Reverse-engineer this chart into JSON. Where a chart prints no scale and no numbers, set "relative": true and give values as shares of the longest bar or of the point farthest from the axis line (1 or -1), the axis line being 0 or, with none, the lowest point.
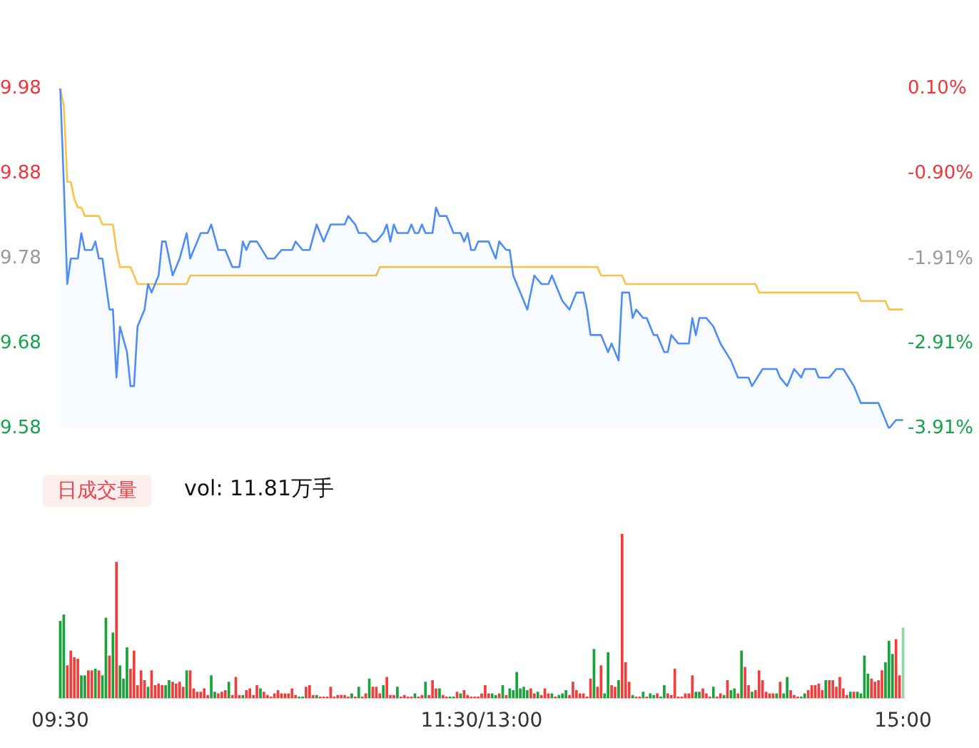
{
  "chart_data": [
    {
      "type": "line",
      "ylim": [
        9.58,
        9.98
      ],
      "yticks": [
        9.58,
        9.68,
        9.78,
        9.88,
        9.98
      ],
      "y2lim": [
        -3.91,
        0.1
      ],
      "y2ticks": [
        {
          "value": -3.91,
          "label": "-3.91%"
        },
        {
          "value": -2.91,
          "label": "-2.91%"
        },
        {
          "value": -1.91,
          "label": "-1.91%"
        },
        {
          "value": -0.9,
          "label": "-0.90%"
        },
        {
          "value": 0.1,
          "label": "0.10%"
        }
      ],
      "tick_labels": "y",
      "marker": "none",
      "categories": [
        null,
        null,
        null,
        null,
        null,
        null,
        null,
        null,
        null,
        null,
        null,
        null,
        null,
        null,
        null,
        null,
        null,
        null,
        null,
        null,
        null,
        null,
        null,
        null,
        null,
        null,
        null,
        null,
        null,
        null,
        null,
        null,
        null,
        null,
        null,
        null,
        null,
        null,
        null,
        null,
        null,
        null,
        null,
        null,
        null,
        null,
        null,
        null,
        null,
        null,
        null,
        null,
        null,
        null,
        null,
        null,
        null,
        null,
        null,
        null,
        null,
        null,
        null,
        null,
        null,
        null,
        null,
        null,
        null,
        null,
        null,
        null,
        null,
        null,
        null,
        null,
        null,
        null,
        null,
        null,
        null,
        null,
        null,
        null,
        null,
        null,
        null,
        null,
        null,
        null,
        null,
        null,
        null,
        null,
        null,
        null,
        null,
        null,
        null,
        null,
        null,
        null,
        null,
        null,
        null,
        null,
        null,
        null,
        null,
        null,
        null,
        null,
        null,
        null,
        null,
        null,
        null,
        null,
        null,
        null,
        null,
        null,
        null,
        null,
        null,
        null,
        null,
        null,
        null,
        null,
        null,
        null,
        null,
        null,
        null,
        null,
        null,
        null,
        null,
        null,
        null,
        null,
        null,
        null,
        null,
        null,
        null,
        null,
        null,
        null,
        null,
        null,
        null,
        null,
        null,
        null,
        null,
        null,
        null,
        null,
        null,
        null,
        null,
        null,
        null,
        null,
        null,
        null,
        null,
        null,
        null,
        null,
        null,
        null,
        null,
        null,
        null,
        null,
        null,
        null,
        null,
        null,
        null,
        null,
        null,
        null,
        null,
        null,
        null,
        null,
        null,
        null,
        null,
        null,
        null,
        null,
        null,
        null,
        null,
        null,
        null,
        null,
        null,
        null,
        null,
        null,
        null,
        null,
        null,
        null,
        null,
        null,
        null,
        null,
        null,
        null,
        null,
        null,
        null,
        null,
        null,
        null,
        null,
        null,
        null,
        null,
        null,
        null,
        null,
        null,
        null,
        null,
        null,
        null,
        null,
        null,
        null,
        null,
        null,
        null,
        null
      ],
      "series": [
        {
          "type": "area",
          "color": "#4e8cf7",
          "values": [
            9.98,
            9.87,
            9.75,
            9.78,
            null,
            9.78,
            9.81,
            9.79,
            null,
            9.79,
            9.8,
            9.78,
            9.78,
            null,
            9.72,
            9.72,
            9.64,
            9.7,
            null,
            9.67,
            9.63,
            9.63,
            9.7,
            null,
            9.72,
            9.75,
            9.74,
            null,
            9.76,
            9.8,
            9.8,
            null,
            9.76,
            null,
            9.78,
            null,
            9.81,
            9.78,
            null,
            null,
            9.81,
            null,
            9.81,
            9.82,
            null,
            9.79,
            null,
            9.79,
            null,
            9.77,
            null,
            9.77,
            9.8,
            9.79,
            9.8,
            null,
            9.8,
            null,
            null,
            9.78,
            null,
            9.78,
            null,
            9.79,
            null,
            null,
            9.79,
            9.8,
            null,
            9.79,
            null,
            9.79,
            null,
            9.82,
            null,
            9.8,
            null,
            9.82,
            null,
            null,
            null,
            9.82,
            9.83,
            null,
            9.82,
            9.81,
            null,
            9.81,
            null,
            9.8,
            9.8,
            null,
            9.81,
            9.82,
            9.8,
            9.82,
            9.81,
            null,
            null,
            9.81,
            9.82,
            9.81,
            9.81,
            9.82,
            9.81,
            null,
            9.81,
            9.84,
            9.83,
            null,
            9.83,
            null,
            9.81,
            null,
            9.81,
            9.8,
            9.81,
            9.79,
            9.79,
            9.8,
            null,
            null,
            9.8,
            null,
            9.78,
            9.8,
            null,
            9.79,
            9.79,
            9.76,
            null,
            9.74,
            null,
            9.72,
            null,
            9.76,
            null,
            9.75,
            null,
            9.75,
            9.76,
            9.75,
            null,
            9.73,
            null,
            9.72,
            null,
            9.74,
            null,
            9.74,
            9.72,
            9.69,
            null,
            null,
            9.69,
            null,
            9.67,
            9.68,
            null,
            9.66,
            9.74,
            null,
            9.74,
            9.71,
            9.72,
            null,
            9.71,
            9.71,
            null,
            9.69,
            9.69,
            null,
            9.67,
            9.67,
            9.69,
            null,
            9.68,
            null,
            null,
            9.68,
            9.71,
            9.69,
            9.71,
            null,
            9.71,
            null,
            9.7,
            null,
            9.68,
            null,
            null,
            9.66,
            null,
            9.64,
            null,
            null,
            9.64,
            9.63,
            null,
            null,
            9.65,
            9.65,
            null,
            9.65,
            9.65,
            9.64,
            null,
            9.63,
            9.64,
            9.65,
            null,
            9.64,
            9.65,
            null,
            null,
            9.65,
            9.64,
            null,
            null,
            9.64,
            null,
            9.65,
            null,
            9.65,
            null,
            null,
            9.63,
            null,
            9.61,
            null,
            null,
            null,
            null,
            9.61,
            null,
            9.59,
            9.58,
            null,
            9.59,
            null,
            9.59
          ]
        },
        {
          "type": "line",
          "color": "#f9c34a",
          "values": [
            9.98,
            9.96,
            9.87,
            9.87,
            9.85,
            9.84,
            9.84,
            9.83,
            9.83,
            9.83,
            9.83,
            9.83,
            9.82,
            9.82,
            9.82,
            9.82,
            9.79,
            9.77,
            9.77,
            9.77,
            9.77,
            9.76,
            9.75,
            9.75,
            9.75,
            9.75,
            9.75,
            9.75,
            9.75,
            9.75,
            9.75,
            9.75,
            9.75,
            9.75,
            9.75,
            9.75,
            9.75,
            9.76,
            9.76,
            9.76,
            9.76,
            9.76,
            9.76,
            9.76,
            9.76,
            9.76,
            9.76,
            9.76,
            9.76,
            9.76,
            9.76,
            9.76,
            9.76,
            9.76,
            9.76,
            9.76,
            9.76,
            9.76,
            9.76,
            9.76,
            9.76,
            9.76,
            9.76,
            9.76,
            9.76,
            9.76,
            9.76,
            9.76,
            9.76,
            9.76,
            9.76,
            9.76,
            9.76,
            9.76,
            9.76,
            9.76,
            9.76,
            9.76,
            9.76,
            9.76,
            9.76,
            9.76,
            9.76,
            9.76,
            9.76,
            9.76,
            9.76,
            9.76,
            9.76,
            9.76,
            9.76,
            9.77,
            9.77,
            9.77,
            9.77,
            9.77,
            9.77,
            9.77,
            9.77,
            9.77,
            9.77,
            9.77,
            9.77,
            9.77,
            9.77,
            9.77,
            9.77,
            9.77,
            9.77,
            9.77,
            9.77,
            9.77,
            9.77,
            9.77,
            9.77,
            9.77,
            9.77,
            9.77,
            9.77,
            9.77,
            9.77,
            9.77,
            9.77,
            9.77,
            9.77,
            9.77,
            9.77,
            9.77,
            9.77,
            9.77,
            9.77,
            9.77,
            9.77,
            9.77,
            9.77,
            9.77,
            9.77,
            9.77,
            9.77,
            9.77,
            9.77,
            9.77,
            9.77,
            9.77,
            9.77,
            9.77,
            9.77,
            9.77,
            9.77,
            9.77,
            9.77,
            9.77,
            9.77,
            9.77,
            9.76,
            9.76,
            9.76,
            9.76,
            9.76,
            9.76,
            9.76,
            9.75,
            9.75,
            9.75,
            9.75,
            9.75,
            9.75,
            9.75,
            9.75,
            9.75,
            9.75,
            9.75,
            9.75,
            9.75,
            9.75,
            9.75,
            9.75,
            9.75,
            9.75,
            9.75,
            9.75,
            9.75,
            9.75,
            9.75,
            9.75,
            9.75,
            9.75,
            9.75,
            9.75,
            9.75,
            9.75,
            9.75,
            9.75,
            9.75,
            9.75,
            9.75,
            9.75,
            9.75,
            9.75,
            9.74,
            9.74,
            9.74,
            9.74,
            9.74,
            9.74,
            9.74,
            9.74,
            9.74,
            9.74,
            9.74,
            9.74,
            9.74,
            9.74,
            9.74,
            9.74,
            9.74,
            9.74,
            9.74,
            9.74,
            9.74,
            9.74,
            9.74,
            9.74,
            9.74,
            9.74,
            9.74,
            9.74,
            9.74,
            9.73,
            9.73,
            9.73,
            9.73,
            9.73,
            9.73,
            9.73,
            9.73,
            9.72,
            9.72,
            9.72,
            9.72,
            9.72
          ]
        }
      ]
    },
    {
      "type": "bar",
      "title": "日成交量",
      "subtitle": "vol: 11.81万手",
      "relative": true,
      "categories": [
        "09:30",
        null,
        null,
        null,
        null,
        null,
        null,
        null,
        null,
        null,
        null,
        null,
        null,
        null,
        null,
        null,
        null,
        null,
        null,
        null,
        null,
        null,
        null,
        null,
        null,
        null,
        null,
        null,
        null,
        null,
        null,
        null,
        null,
        null,
        null,
        null,
        null,
        null,
        null,
        null,
        null,
        null,
        null,
        null,
        null,
        null,
        null,
        null,
        null,
        null,
        null,
        null,
        null,
        null,
        null,
        null,
        null,
        null,
        null,
        null,
        null,
        null,
        null,
        null,
        null,
        null,
        null,
        null,
        null,
        null,
        null,
        null,
        null,
        null,
        null,
        null,
        null,
        null,
        null,
        null,
        null,
        null,
        null,
        null,
        null,
        null,
        null,
        null,
        null,
        null,
        null,
        null,
        null,
        null,
        null,
        null,
        null,
        null,
        null,
        null,
        null,
        null,
        null,
        null,
        null,
        null,
        null,
        null,
        null,
        null,
        null,
        null,
        null,
        null,
        null,
        null,
        null,
        null,
        null,
        null,
        "11:30/13:00",
        null,
        null,
        null,
        null,
        null,
        null,
        null,
        null,
        null,
        null,
        null,
        null,
        null,
        null,
        null,
        null,
        null,
        null,
        null,
        null,
        null,
        null,
        null,
        null,
        null,
        null,
        null,
        null,
        null,
        null,
        null,
        null,
        null,
        null,
        null,
        null,
        null,
        null,
        null,
        null,
        null,
        null,
        null,
        null,
        null,
        null,
        null,
        null,
        null,
        null,
        null,
        null,
        null,
        null,
        null,
        null,
        null,
        null,
        null,
        null,
        null,
        null,
        null,
        null,
        null,
        null,
        null,
        null,
        null,
        null,
        null,
        null,
        null,
        null,
        null,
        null,
        null,
        null,
        null,
        null,
        null,
        null,
        null,
        null,
        null,
        null,
        null,
        null,
        null,
        null,
        null,
        null,
        null,
        null,
        null,
        null,
        null,
        null,
        null,
        null,
        null,
        null,
        null,
        null,
        null,
        null,
        null,
        null,
        null,
        null,
        null,
        null,
        null,
        null,
        null,
        null,
        null,
        null,
        null,
        "15:00"
      ],
      "values": [
        0.47,
        0.51,
        0.2,
        0.29,
        0.25,
        0.24,
        0.14,
        0.14,
        0.17,
        0.17,
        0.18,
        0.17,
        0.14,
        0.49,
        0.26,
        0.4,
        0.83,
        0.2,
        0.12,
        0.31,
        0.18,
        0.29,
        0.08,
        0.17,
        0.11,
        0.07,
        0.17,
        0.08,
        0.09,
        0.08,
        0.08,
        0.11,
        0.1,
        0.09,
        0.1,
        0.07,
        0.17,
        0.17,
        0.06,
        0.04,
        0.04,
        0.06,
        0.02,
        0.14,
        0.04,
        0.03,
        0.04,
        0.05,
        0.1,
        0.02,
        0.13,
        0.02,
        0.02,
        0.05,
        0.06,
        0.02,
        0.08,
        0.06,
        0.04,
        0.02,
        0.01,
        0.03,
        0.05,
        0.03,
        0.03,
        0.03,
        0.06,
        0.02,
        0.01,
        0.01,
        0.07,
        0.08,
        0.02,
        0.02,
        0.01,
        0.01,
        0.01,
        0.07,
        0.01,
        0.02,
        0.02,
        0.02,
        0.01,
        0.03,
        0.01,
        0.07,
        0.01,
        0.03,
        0.12,
        0.07,
        0.07,
        0.03,
        0.08,
        0.13,
        0.02,
        0.02,
        0.07,
        0.01,
        0.02,
        0.01,
        0.01,
        0.03,
        0.01,
        0.02,
        0.1,
        0.02,
        0.11,
        0.06,
        0.06,
        0.02,
        0.01,
        0.01,
        0.01,
        0.04,
        0.03,
        0.05,
        0.02,
        0.01,
        0.01,
        0.01,
        0.03,
        0.08,
        0.03,
        0.03,
        0.02,
        0.03,
        0.08,
        0.02,
        0.06,
        0.05,
        0.16,
        0.06,
        0.07,
        0.05,
        0.06,
        0.03,
        0.04,
        0.02,
        0.06,
        0.03,
        0.03,
        0.01,
        0.02,
        0.03,
        0.05,
        0.02,
        0.1,
        0.05,
        0.03,
        0.03,
        0.01,
        0.12,
        0.3,
        0.07,
        0.2,
        0.03,
        0.28,
        0.08,
        0.07,
        0.11,
        1,
        0.22,
        0.1,
        0.02,
        0.01,
        0.01,
        0.04,
        0.01,
        0.03,
        0.02,
        0.03,
        0.01,
        0.08,
        0.03,
        0.02,
        0.18,
        0.01,
        0.01,
        0.03,
        0.03,
        0.14,
        0.04,
        0.04,
        0.06,
        0.03,
        0.01,
        0.07,
        0.01,
        0.03,
        0.02,
        0.11,
        0.05,
        0.06,
        0.03,
        0.29,
        0.19,
        0.08,
        0.04,
        0.05,
        0.17,
        0.11,
        0.04,
        0.03,
        0.03,
        0.03,
        0.1,
        0.03,
        0.13,
        0.05,
        0.02,
        0.01,
        0.01,
        0.03,
        0.05,
        0.08,
        0.08,
        0.09,
        0.05,
        0.11,
        0.11,
        0.11,
        0.07,
        0.13,
        0.06,
        0.02,
        0.04,
        0.04,
        0.04,
        0.03,
        0.26,
        0.15,
        0.12,
        0.1,
        0.11,
        0.17,
        0.22,
        0.35,
        0.27,
        0.36,
        0.14,
        0.43
      ],
      "colors": [
        "#1aa33a",
        "#1aa33a",
        "#f23d3d",
        "#f23d3d",
        "#f23d3d",
        "#f23d3d",
        "#1aa33a",
        "#1aa33a",
        "#f23d3d",
        "#f23d3d",
        "#1aa33a",
        "#f23d3d",
        "#1aa33a",
        "#1aa33a",
        "#f23d3d",
        "#1aa33a",
        "#f23d3d",
        "#1aa33a",
        "#1aa33a",
        "#1aa33a",
        "#f23d3d",
        "#f23d3d",
        "#f23d3d",
        "#f23d3d",
        "#f23d3d",
        "#1aa33a",
        "#f23d3d",
        "#f23d3d",
        "#f23d3d",
        "#f23d3d",
        "#1aa33a",
        "#1aa33a",
        "#f23d3d",
        "#f23d3d",
        "#f23d3d",
        "#f23d3d",
        "#1aa33a",
        "#f23d3d",
        "#f23d3d",
        "#f23d3d",
        "#f23d3d",
        "#f23d3d",
        "#f23d3d",
        "#1aa33a",
        "#1aa33a",
        "#f23d3d",
        "#f23d3d",
        "#f23d3d",
        "#1aa33a",
        "#f23d3d",
        "#f23d3d",
        "#f23d3d",
        "#1aa33a",
        "#f23d3d",
        "#f23d3d",
        "#f23d3d",
        "#f23d3d",
        "#1aa33a",
        "#f23d3d",
        "#f23d3d",
        "#f23d3d",
        "#f23d3d",
        "#f23d3d",
        "#f23d3d",
        "#f23d3d",
        "#f23d3d",
        "#f23d3d",
        "#f23d3d",
        "#1aa33a",
        "#1aa33a",
        "#f23d3d",
        "#f23d3d",
        "#f23d3d",
        "#1aa33a",
        "#f23d3d",
        "#f23d3d",
        "#f23d3d",
        "#f23d3d",
        "#f23d3d",
        "#f23d3d",
        "#f23d3d",
        "#f23d3d",
        "#f23d3d",
        "#1aa33a",
        "#f23d3d",
        "#1aa33a",
        "#f23d3d",
        "#f23d3d",
        "#1aa33a",
        "#f23d3d",
        "#f23d3d",
        "#f23d3d",
        "#1aa33a",
        "#f23d3d",
        "#f23d3d",
        "#f23d3d",
        "#1aa33a",
        "#f23d3d",
        "#f23d3d",
        "#f23d3d",
        "#f23d3d",
        "#1aa33a",
        "#f23d3d",
        "#f23d3d",
        "#1aa33a",
        "#f23d3d",
        "#f23d3d",
        "#f23d3d",
        "#1aa33a",
        "#f23d3d",
        "#f23d3d",
        "#1aa33a",
        "#1aa33a",
        "#f23d3d",
        "#1aa33a",
        "#f23d3d",
        "#f23d3d",
        "#f23d3d",
        "#f23d3d",
        "#f23d3d",
        "#f23d3d",
        "#f23d3d",
        "#f23d3d",
        "#1aa33a",
        "#1aa33a",
        "#f23d3d",
        "#1aa33a",
        "#f23d3d",
        "#1aa33a",
        "#1aa33a",
        "#1aa33a",
        "#1aa33a",
        "#1aa33a",
        "#1aa33a",
        "#f23d3d",
        "#f23d3d",
        "#1aa33a",
        "#f23d3d",
        "#f23d3d",
        "#f23d3d",
        "#1aa33a",
        "#f23d3d",
        "#1aa33a",
        "#1aa33a",
        "#1aa33a",
        "#f23d3d",
        "#f23d3d",
        "#f23d3d",
        "#f23d3d",
        "#f23d3d",
        "#f23d3d",
        "#f23d3d",
        "#1aa33a",
        "#f23d3d",
        "#f23d3d",
        "#1aa33a",
        "#1aa33a",
        "#f23d3d",
        "#f23d3d",
        "#1aa33a",
        "#f23d3d",
        "#f23d3d",
        "#f23d3d",
        "#1aa33a",
        "#f23d3d",
        "#f23d3d",
        "#1aa33a",
        "#f23d3d",
        "#1aa33a",
        "#1aa33a",
        "#f23d3d",
        "#1aa33a",
        "#1aa33a",
        "#f23d3d",
        "#f23d3d",
        "#f23d3d",
        "#f23d3d",
        "#f23d3d",
        "#f23d3d",
        "#f23d3d",
        "#f23d3d",
        "#1aa33a",
        "#1aa33a",
        "#f23d3d",
        "#f23d3d",
        "#f23d3d",
        "#1aa33a",
        "#f23d3d",
        "#f23d3d",
        "#1aa33a",
        "#f23d3d",
        "#1aa33a",
        "#1aa33a",
        "#f23d3d",
        "#1aa33a",
        "#f23d3d",
        "#f23d3d",
        "#1aa33a",
        "#f23d3d",
        "#f23d3d",
        "#f23d3d",
        "#f23d3d",
        "#f23d3d",
        "#f23d3d",
        "#1aa33a",
        "#f23d3d",
        "#1aa33a",
        "#1aa33a",
        "#f23d3d",
        "#f23d3d",
        "#f23d3d",
        "#1aa33a",
        "#1aa33a",
        "#f23d3d",
        "#f23d3d",
        "#f23d3d",
        "#f23d3d",
        "#f23d3d",
        "#1aa33a",
        "#f23d3d",
        "#f23d3d",
        "#f23d3d",
        "#f23d3d",
        "#f23d3d",
        "#f23d3d",
        "#1aa33a",
        "#f23d3d",
        "#1aa33a",
        "#1aa33a",
        "#1aa33a",
        "#1aa33a",
        "#f23d3d",
        "#f23d3d",
        "#f23d3d",
        "#f23d3d",
        "#1aa33a",
        "#1aa33a",
        "#1aa33a",
        "#f23d3d",
        "#f23d3d",
        "#8fd6a0"
      ]
    }
  ]
}
